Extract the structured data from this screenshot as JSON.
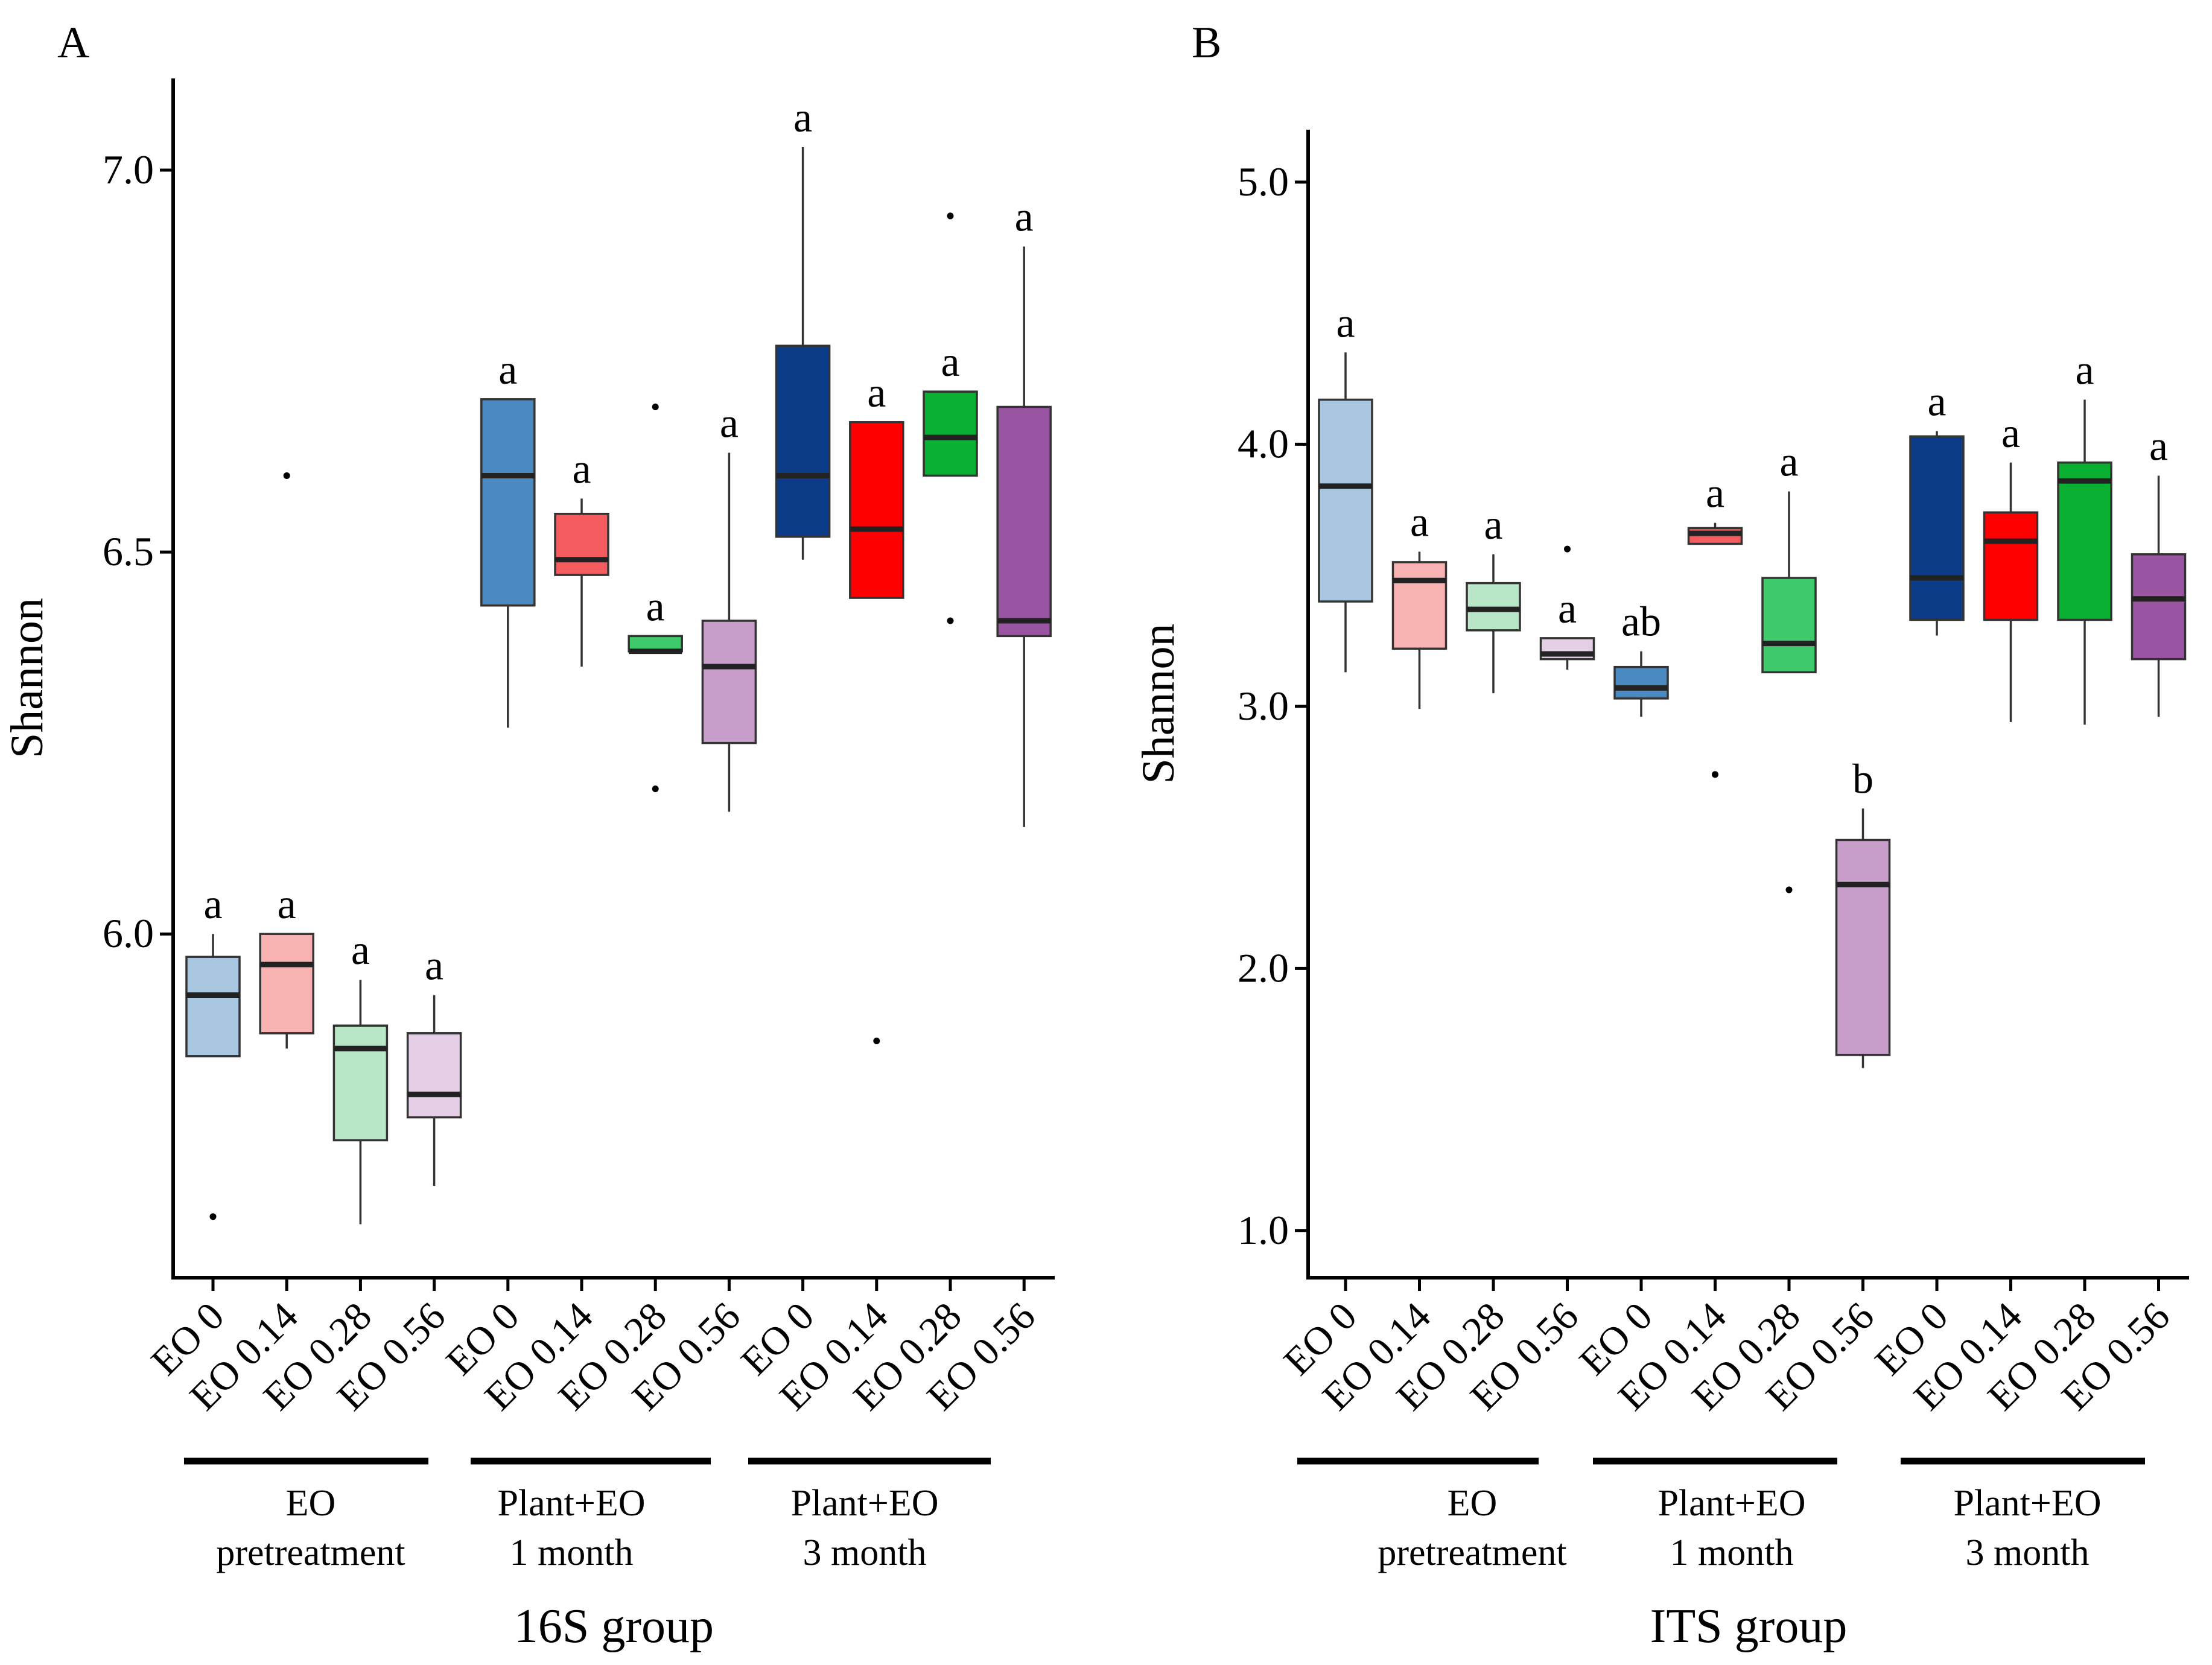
{
  "chart_data": [
    {
      "panel_label": "A",
      "type": "box",
      "ylabel": "Shannon",
      "xlabel": "16S group",
      "ylim": [
        5.55,
        7.12
      ],
      "yticks": [
        6.0,
        6.5,
        7.0
      ],
      "ytick_labels": [
        "6.0",
        "6.5",
        "7.0"
      ],
      "groups": [
        {
          "label_lines": [
            "EO",
            "pretreatment"
          ],
          "categories": [
            0,
            1,
            2,
            3
          ]
        },
        {
          "label_lines": [
            "Plant+EO",
            "1 month"
          ],
          "categories": [
            4,
            5,
            6,
            7
          ]
        },
        {
          "label_lines": [
            "Plant+EO",
            "3 month"
          ],
          "categories": [
            8,
            9,
            10,
            11
          ]
        }
      ],
      "categories": [
        "EO 0",
        "EO 0.14",
        "EO 0.28",
        "EO 0.56",
        "EO 0",
        "EO 0.14",
        "EO 0.28",
        "EO 0.56",
        "EO 0",
        "EO 0.14",
        "EO 0.28",
        "EO 0.56"
      ],
      "boxes": [
        {
          "category": "EO 0",
          "color": "#a8c6df",
          "whisker_low": 5.84,
          "q1": 5.84,
          "median": 5.92,
          "q3": 5.97,
          "whisker_high": 6.0,
          "outliers": [
            5.63
          ],
          "letter": "a"
        },
        {
          "category": "EO 0.14",
          "color": "#f9b2b2",
          "whisker_low": 5.85,
          "q1": 5.87,
          "median": 5.96,
          "q3": 6.0,
          "whisker_high": 6.0,
          "outliers": [
            6.6
          ],
          "letter": "a"
        },
        {
          "category": "EO 0.28",
          "color": "#b8e6c7",
          "whisker_low": 5.62,
          "q1": 5.73,
          "median": 5.85,
          "q3": 5.88,
          "whisker_high": 5.94,
          "outliers": [],
          "letter": "a"
        },
        {
          "category": "EO 0.56",
          "color": "#e4cfe6",
          "whisker_low": 5.67,
          "q1": 5.76,
          "median": 5.79,
          "q3": 5.87,
          "whisker_high": 5.92,
          "outliers": [],
          "letter": "a"
        },
        {
          "category": "EO 0",
          "color": "#4b8ac0",
          "whisker_low": 6.27,
          "q1": 6.43,
          "median": 6.6,
          "q3": 6.7,
          "whisker_high": 6.7,
          "outliers": [],
          "letter": "a"
        },
        {
          "category": "EO 0.14",
          "color": "#f45b5f",
          "whisker_low": 6.35,
          "q1": 6.47,
          "median": 6.49,
          "q3": 6.55,
          "whisker_high": 6.57,
          "outliers": [],
          "letter": "a"
        },
        {
          "category": "EO 0.28",
          "color": "#3ec96a",
          "whisker_low": 6.37,
          "q1": 6.37,
          "median": 6.37,
          "q3": 6.39,
          "whisker_high": 6.39,
          "outliers": [
            6.69,
            6.19
          ],
          "letter": "a"
        },
        {
          "category": "EO 0.56",
          "color": "#c79dc9",
          "whisker_low": 6.16,
          "q1": 6.25,
          "median": 6.35,
          "q3": 6.41,
          "whisker_high": 6.63,
          "outliers": [],
          "letter": "a"
        },
        {
          "category": "EO 0",
          "color": "#0c3c88",
          "whisker_low": 6.49,
          "q1": 6.52,
          "median": 6.6,
          "q3": 6.77,
          "whisker_high": 7.03,
          "outliers": [],
          "letter": "a"
        },
        {
          "category": "EO 0.14",
          "color": "#ff0000",
          "whisker_low": 6.44,
          "q1": 6.44,
          "median": 6.53,
          "q3": 6.67,
          "whisker_high": 6.67,
          "outliers": [
            5.86
          ],
          "letter": "a"
        },
        {
          "category": "EO 0.28",
          "color": "#0ab032",
          "whisker_low": 6.6,
          "q1": 6.6,
          "median": 6.65,
          "q3": 6.71,
          "whisker_high": 6.71,
          "outliers": [
            6.94,
            6.41
          ],
          "letter": "a"
        },
        {
          "category": "EO 0.56",
          "color": "#9a55a2",
          "whisker_low": 6.14,
          "q1": 6.39,
          "median": 6.41,
          "q3": 6.69,
          "whisker_high": 6.9,
          "outliers": [],
          "letter": "a"
        }
      ]
    },
    {
      "panel_label": "B",
      "type": "box",
      "ylabel": "Shannon",
      "xlabel": "ITS group",
      "ylim": [
        0.82,
        5.2
      ],
      "yticks": [
        1.0,
        2.0,
        3.0,
        4.0,
        5.0
      ],
      "ytick_labels": [
        "1.0",
        "2.0",
        "3.0",
        "4.0",
        "5.0"
      ],
      "groups": [
        {
          "label_lines": [
            "EO",
            "pretreatment"
          ],
          "categories": [
            0,
            1,
            2,
            3
          ]
        },
        {
          "label_lines": [
            "Plant+EO",
            "1 month"
          ],
          "categories": [
            4,
            5,
            6,
            7
          ]
        },
        {
          "label_lines": [
            "Plant+EO",
            "3 month"
          ],
          "categories": [
            8,
            9,
            10,
            11
          ]
        }
      ],
      "categories": [
        "EO 0",
        "EO 0.14",
        "EO 0.28",
        "EO 0.56",
        "EO 0",
        "EO 0.14",
        "EO 0.28",
        "EO 0.56",
        "EO 0",
        "EO 0.14",
        "EO 0.28",
        "EO 0.56"
      ],
      "boxes": [
        {
          "category": "EO 0",
          "color": "#a8c6df",
          "whisker_low": 3.13,
          "q1": 3.4,
          "median": 3.84,
          "q3": 4.17,
          "whisker_high": 4.35,
          "outliers": [],
          "letter": "a"
        },
        {
          "category": "EO 0.14",
          "color": "#f9b2b2",
          "whisker_low": 2.99,
          "q1": 3.22,
          "median": 3.48,
          "q3": 3.55,
          "whisker_high": 3.59,
          "outliers": [],
          "letter": "a"
        },
        {
          "category": "EO 0.28",
          "color": "#b8e6c7",
          "whisker_low": 3.05,
          "q1": 3.29,
          "median": 3.37,
          "q3": 3.47,
          "whisker_high": 3.58,
          "outliers": [],
          "letter": "a"
        },
        {
          "category": "EO 0.56",
          "color": "#e4cfe6",
          "whisker_low": 3.14,
          "q1": 3.18,
          "median": 3.2,
          "q3": 3.26,
          "whisker_high": 3.26,
          "outliers": [
            3.6
          ],
          "letter": "a"
        },
        {
          "category": "EO 0",
          "color": "#4b8ac0",
          "whisker_low": 2.96,
          "q1": 3.03,
          "median": 3.07,
          "q3": 3.15,
          "whisker_high": 3.21,
          "outliers": [],
          "letter": "ab"
        },
        {
          "category": "EO 0.14",
          "color": "#f45b5f",
          "whisker_low": 3.62,
          "q1": 3.62,
          "median": 3.66,
          "q3": 3.68,
          "whisker_high": 3.7,
          "outliers": [
            2.74
          ],
          "letter": "a"
        },
        {
          "category": "EO 0.28",
          "color": "#3ec96a",
          "whisker_low": 3.13,
          "q1": 3.13,
          "median": 3.24,
          "q3": 3.49,
          "whisker_high": 3.82,
          "outliers": [
            2.3
          ],
          "letter": "a"
        },
        {
          "category": "EO 0.56",
          "color": "#c79dc9",
          "whisker_low": 1.62,
          "q1": 1.67,
          "median": 2.32,
          "q3": 2.49,
          "whisker_high": 2.61,
          "outliers": [],
          "letter": "b"
        },
        {
          "category": "EO 0",
          "color": "#0c3c88",
          "whisker_low": 3.27,
          "q1": 3.33,
          "median": 3.49,
          "q3": 4.03,
          "whisker_high": 4.05,
          "outliers": [],
          "letter": "a"
        },
        {
          "category": "EO 0.14",
          "color": "#ff0000",
          "whisker_low": 2.94,
          "q1": 3.33,
          "median": 3.63,
          "q3": 3.74,
          "whisker_high": 3.93,
          "outliers": [],
          "letter": "a"
        },
        {
          "category": "EO 0.28",
          "color": "#0ab032",
          "whisker_low": 2.93,
          "q1": 3.33,
          "median": 3.86,
          "q3": 3.93,
          "whisker_high": 4.17,
          "outliers": [],
          "letter": "a"
        },
        {
          "category": "EO 0.56",
          "color": "#9a55a2",
          "whisker_low": 2.96,
          "q1": 3.18,
          "median": 3.41,
          "q3": 3.58,
          "whisker_high": 3.88,
          "outliers": [],
          "letter": "a"
        }
      ]
    }
  ]
}
